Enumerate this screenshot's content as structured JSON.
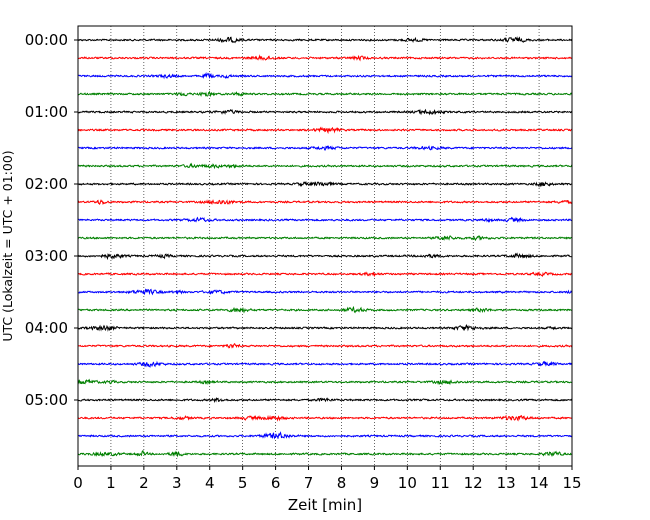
{
  "chart_data": {
    "type": "line",
    "title": "",
    "xlabel": "Zeit  [min]",
    "ylabel": "UTC (Lokalzeit = UTC + 01:00)",
    "xlim": [
      0,
      15
    ],
    "x_ticks": [
      0,
      1,
      2,
      3,
      4,
      5,
      6,
      7,
      8,
      9,
      10,
      11,
      12,
      13,
      14,
      15
    ],
    "y_tick_labels": [
      "00:00",
      "01:00",
      "02:00",
      "03:00",
      "04:00",
      "05:00"
    ],
    "traces_per_hour": 4,
    "trace_minutes": 15,
    "trace_count": 24,
    "trace_colors": [
      "#000000",
      "#ff0000",
      "#0000ff",
      "#008000"
    ],
    "grid_vertical_dotted": true
  }
}
